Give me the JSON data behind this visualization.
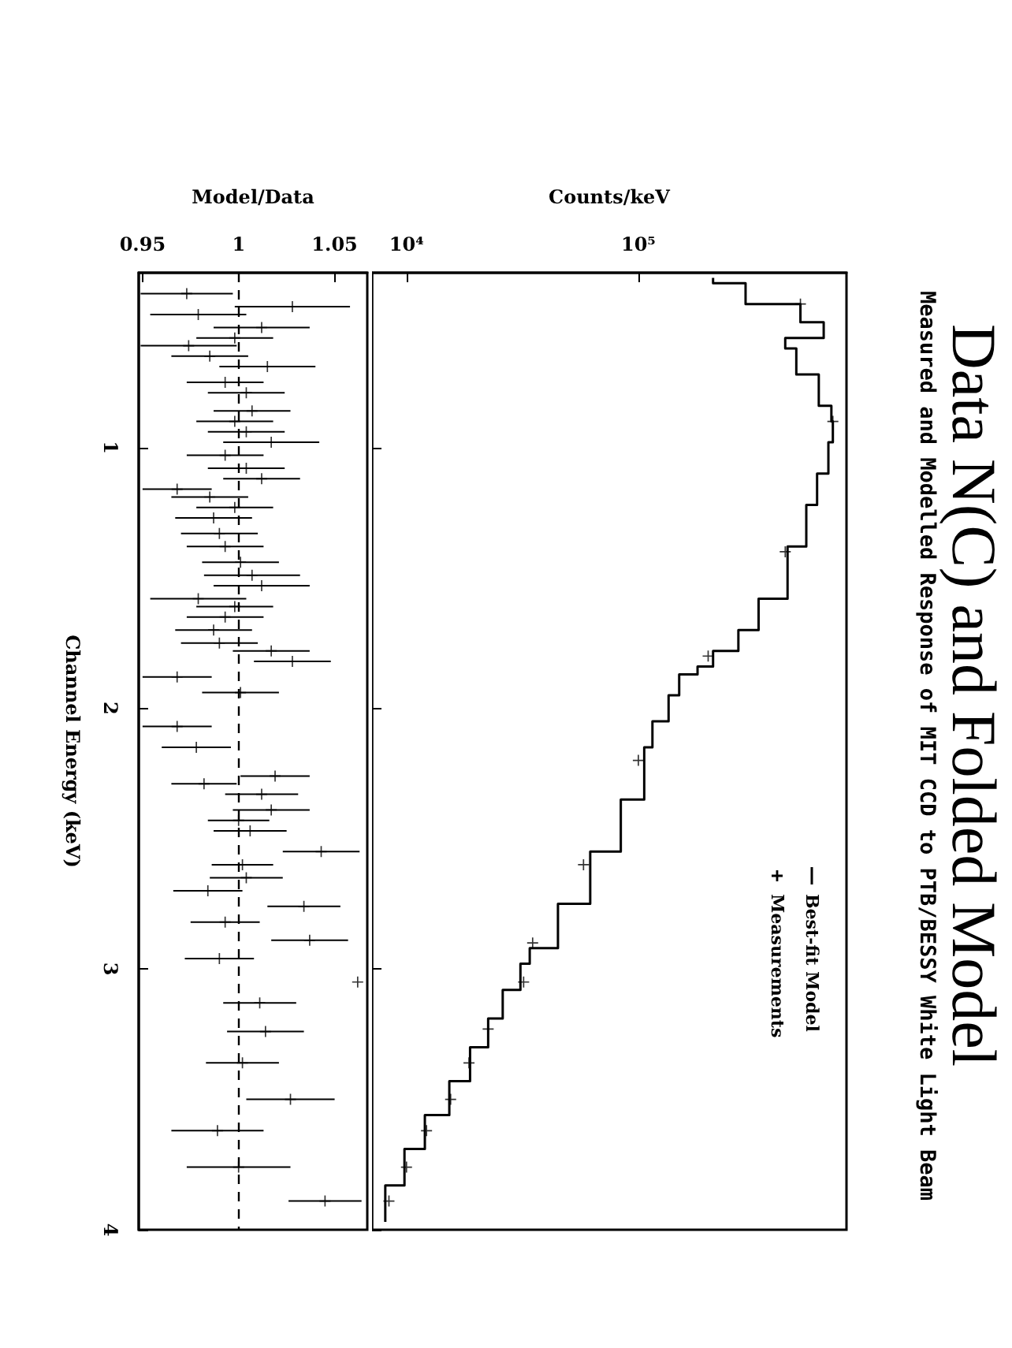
{
  "chart_data": [
    {
      "type": "line",
      "xlabel": "Counts/keV",
      "log": "x",
      "ylim": [
        4,
        0.33
      ],
      "yticks": [
        1,
        2,
        3,
        4
      ],
      "xlim": [
        7100,
        790000
      ],
      "xticks": [
        {
          "value": 10000,
          "label": "10⁴"
        },
        {
          "value": 100000,
          "label": "10⁵"
        }
      ],
      "tick_labels": "x",
      "legend": "bottom right",
      "series": [
        {
          "name": "Best-fit Model",
          "type": "step",
          "color": "#000000",
          "values": [
            0.35,
            0.37,
            0.45,
            0.52,
            0.58,
            0.62,
            0.72,
            0.84,
            0.9,
            0.98,
            1.1,
            1.22,
            1.38,
            1.58,
            1.7,
            1.78,
            1.84,
            1.87,
            1.95,
            2.05,
            2.15,
            2.35,
            2.55,
            2.75,
            2.92,
            2.98,
            3.08,
            3.19,
            3.3,
            3.43,
            3.56,
            3.69,
            3.83,
            3.97
          ],
          "x": [
            210000,
            290000,
            500000,
            630000,
            430000,
            480000,
            600000,
            680000,
            690000,
            660000,
            590000,
            530000,
            440000,
            330000,
            270000,
            210000,
            180000,
            150000,
            135000,
            115000,
            106000,
            84000,
            62000,
            45000,
            34000,
            31000,
            26000,
            22500,
            18800,
            15300,
            12000,
            9800,
            8100,
            8100
          ]
        },
        {
          "name": "Measurements",
          "type": "scatter",
          "marker": "cross",
          "color": "#000000",
          "values": [
            0.45,
            0.9,
            1.4,
            1.8,
            2.2,
            2.6,
            2.9,
            3.05,
            3.23,
            3.36,
            3.5,
            3.62,
            3.76,
            3.89
          ],
          "x": [
            500000,
            690000,
            430000,
            200000,
            100000,
            58000,
            35000,
            32000,
            22500,
            18600,
            15500,
            12200,
            10000,
            8400
          ]
        }
      ]
    },
    {
      "type": "scatter",
      "ylabel": "Channel Energy (keV)",
      "xlabel": "Model/Data",
      "ylim": [
        4,
        0.33
      ],
      "yticks": [
        1,
        2,
        3,
        4
      ],
      "xlim": [
        0.948,
        1.067
      ],
      "xticks": [
        0.95,
        1,
        1.05
      ],
      "marker": "cross",
      "color": "#000000",
      "ref_lines": [
        {
          "axis": "x",
          "value": 1,
          "line_style": "dashed"
        }
      ],
      "values": [
        0.41,
        0.46,
        0.49,
        0.54,
        0.58,
        0.61,
        0.65,
        0.69,
        0.75,
        0.79,
        0.86,
        0.9,
        0.94,
        0.98,
        1.03,
        1.08,
        1.12,
        1.16,
        1.19,
        1.23,
        1.27,
        1.33,
        1.38,
        1.44,
        1.49,
        1.53,
        1.58,
        1.61,
        1.65,
        1.7,
        1.75,
        1.78,
        1.82,
        1.88,
        1.94,
        2.07,
        2.15,
        2.26,
        2.29,
        2.33,
        2.39,
        2.43,
        2.47,
        2.55,
        2.6,
        2.65,
        2.7,
        2.76,
        2.82,
        2.89,
        2.96,
        3.05,
        3.13,
        3.24,
        3.36,
        3.5,
        3.62,
        3.76,
        3.89
      ],
      "x": [
        0.973,
        1.028,
        0.979,
        1.012,
        0.998,
        0.974,
        0.985,
        1.015,
        0.993,
        1.004,
        1.007,
        0.998,
        1.004,
        1.017,
        0.993,
        1.004,
        1.012,
        0.968,
        0.985,
        0.998,
        0.987,
        0.99,
        0.993,
        1.001,
        1.007,
        1.012,
        0.979,
        0.998,
        0.993,
        0.987,
        0.99,
        1.017,
        1.028,
        0.968,
        1.001,
        0.968,
        0.978,
        1.019,
        0.982,
        1.012,
        1.017,
        1.0,
        1.006,
        1.043,
        1.002,
        1.004,
        0.984,
        1.034,
        0.993,
        1.037,
        0.99,
        1.062,
        1.011,
        1.014,
        1.002,
        1.027,
        0.989,
        1.0,
        1.045
      ],
      "xerrors": [
        0.024,
        0.03,
        0.025,
        0.025,
        0.02,
        0.025,
        0.02,
        0.025,
        0.02,
        0.02,
        0.02,
        0.02,
        0.02,
        0.025,
        0.02,
        0.02,
        0.02,
        0.018,
        0.02,
        0.02,
        0.02,
        0.02,
        0.02,
        0.02,
        0.025,
        0.025,
        0.025,
        0.02,
        0.02,
        0.02,
        0.02,
        0.02,
        0.02,
        0.018,
        0.02,
        0.018,
        0.018,
        0.018,
        0.017,
        0.019,
        0.02,
        0.016,
        0.019,
        0.02,
        0.016,
        0.019,
        0.018,
        0.019,
        0.018,
        0.02,
        0.018,
        null,
        0.019,
        0.02,
        0.019,
        0.023,
        0.024,
        0.027,
        0.019
      ]
    },
    {
      "type": "other",
      "title": "Data N(C) and Folded Model",
      "subtitle": "Measured and Modelled Response of MIT CCD to PTB/BESSY White Light Beam"
    }
  ]
}
